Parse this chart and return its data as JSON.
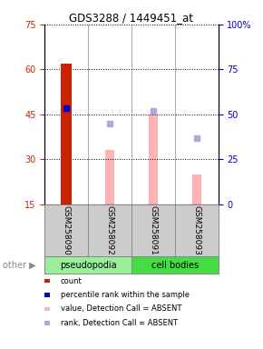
{
  "title": "GDS3288 / 1449451_at",
  "samples": [
    "GSM258090",
    "GSM258092",
    "GSM258091",
    "GSM258093"
  ],
  "ylim_left": [
    15,
    75
  ],
  "ylim_right": [
    0,
    100
  ],
  "yticks_left": [
    15,
    30,
    45,
    60,
    75
  ],
  "yticks_right": [
    0,
    25,
    50,
    75,
    100
  ],
  "left_tick_labels": [
    "15",
    "30",
    "45",
    "60",
    "75"
  ],
  "right_tick_labels": [
    "0",
    "25",
    "50",
    "75",
    "100%"
  ],
  "count_values": [
    62.0,
    null,
    null,
    null
  ],
  "count_color": "#cc2200",
  "percentile_values": [
    47.0,
    null,
    null,
    null
  ],
  "percentile_color": "#0000cc",
  "absent_value_bars": [
    null,
    33.0,
    45.0,
    25.0
  ],
  "absent_value_color": "#ffb3b3",
  "absent_rank_dots": [
    null,
    42.0,
    46.0,
    37.0
  ],
  "absent_rank_color": "#aaaadd",
  "bg_color": "#cccccc",
  "pseudopodia_color": "#99ee99",
  "cell_bodies_color": "#44dd44",
  "legend_items": [
    {
      "color": "#cc2200",
      "label": "count"
    },
    {
      "color": "#0000cc",
      "label": "percentile rank within the sample"
    },
    {
      "color": "#ffb3b3",
      "label": "value, Detection Call = ABSENT"
    },
    {
      "color": "#aaaadd",
      "label": "rank, Detection Call = ABSENT"
    }
  ]
}
